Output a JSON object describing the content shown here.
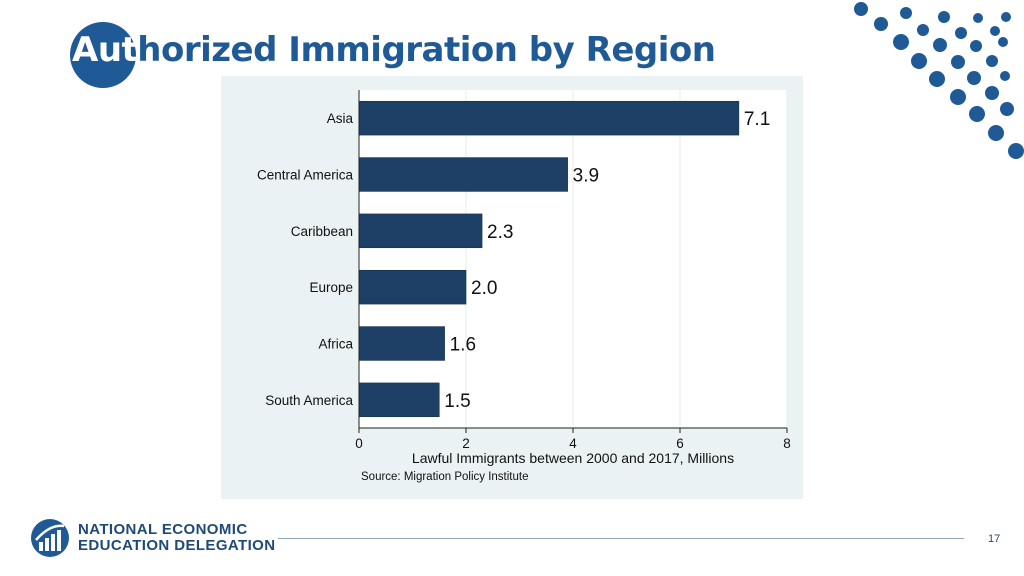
{
  "slide": {
    "title_lead": "Aut",
    "title_rest": "horized Immigration by Region",
    "page_number": "17"
  },
  "org": {
    "line1": "NATIONAL ECONOMIC",
    "line2": "EDUCATION DELEGATION",
    "logo_icon": "need-logo-icon"
  },
  "colors": {
    "brand_blue": "#1f5a96",
    "bar": "#1e3f66",
    "chart_background": "#eaf2f3"
  },
  "decoration": {
    "icon": "dot-pattern-icon"
  },
  "chart_data": {
    "type": "bar",
    "orientation": "horizontal",
    "categories": [
      "Asia",
      "Central America",
      "Caribbean",
      "Europe",
      "Africa",
      "South America"
    ],
    "values": [
      7.1,
      3.9,
      2.3,
      2.0,
      1.6,
      1.5
    ],
    "value_labels": [
      "7.1",
      "3.9",
      "2.3",
      "2.0",
      "1.6",
      "1.5"
    ],
    "xlabel": "Lawful Immigrants between 2000 and 2017, Millions",
    "xlim": [
      0,
      8
    ],
    "xticks": [
      0,
      2,
      4,
      6,
      8
    ],
    "source": "Source: Migration Policy Institute",
    "grid": true
  }
}
